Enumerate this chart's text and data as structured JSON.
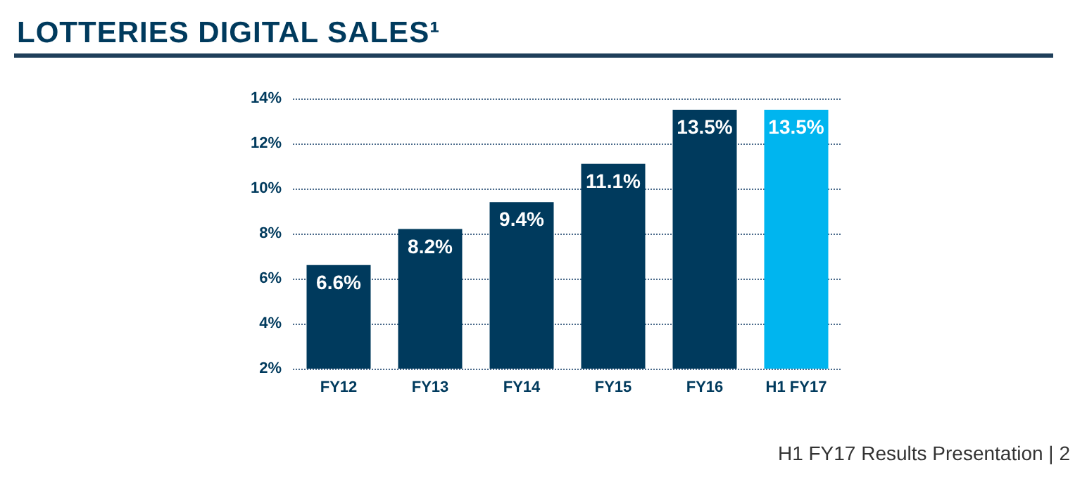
{
  "chart_data": {
    "type": "bar",
    "title": "LOTTERIES DIGITAL SALES¹",
    "categories": [
      "FY12",
      "FY13",
      "FY14",
      "FY15",
      "FY16",
      "H1 FY17"
    ],
    "values": [
      6.6,
      8.2,
      9.4,
      11.1,
      13.5,
      13.5
    ],
    "colors": [
      "#003a5d",
      "#003a5d",
      "#003a5d",
      "#003a5d",
      "#003a5d",
      "#00b5ef"
    ],
    "value_labels": [
      "6.6%",
      "8.2%",
      "9.4%",
      "11.1%",
      "13.5%",
      "13.5%"
    ],
    "ylim": [
      2,
      14
    ],
    "yticks": [
      {
        "value": 2,
        "label": "2%"
      },
      {
        "value": 4,
        "label": "4%"
      },
      {
        "value": 6,
        "label": "6%"
      },
      {
        "value": 8,
        "label": "8%"
      },
      {
        "value": 10,
        "label": "10%"
      },
      {
        "value": 12,
        "label": "12%"
      },
      {
        "value": 14,
        "label": "14%"
      }
    ],
    "grid": "y",
    "annotations": [
      "H1 FY17 Results Presentation | 2"
    ]
  }
}
